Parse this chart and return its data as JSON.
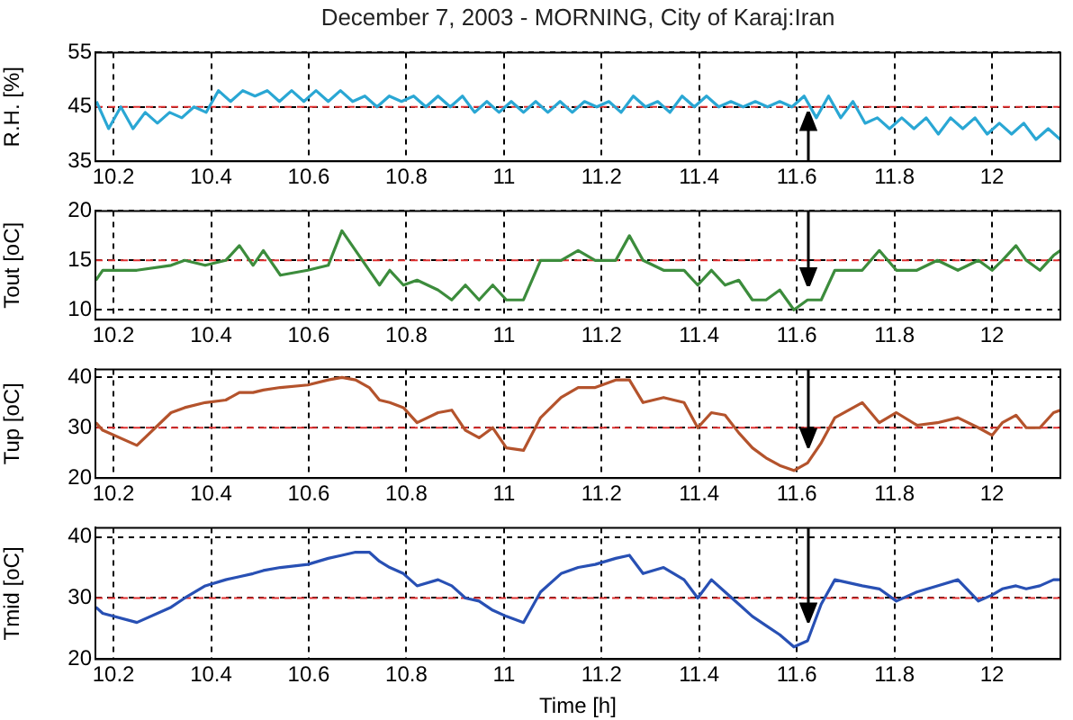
{
  "chart_data": [
    {
      "type": "line",
      "title": "December 7, 2003 - MORNING, City of Karaj:Iran",
      "ylabel": "R.H. [%]",
      "xlim": [
        10.163,
        12.14
      ],
      "xticks": [
        10.2,
        10.4,
        10.6,
        10.8,
        11,
        11.2,
        11.4,
        11.6,
        11.8,
        12
      ],
      "ylim": [
        35,
        55
      ],
      "yticks": [
        35,
        45,
        55
      ],
      "grid": true,
      "x": [
        10.165,
        10.19,
        10.215,
        10.24,
        10.265,
        10.29,
        10.315,
        10.34,
        10.365,
        10.39,
        10.415,
        10.44,
        10.465,
        10.49,
        10.515,
        10.54,
        10.565,
        10.59,
        10.615,
        10.64,
        10.665,
        10.69,
        10.715,
        10.74,
        10.765,
        10.79,
        10.815,
        10.84,
        10.865,
        10.89,
        10.915,
        10.94,
        10.965,
        10.99,
        11.015,
        11.04,
        11.065,
        11.09,
        11.115,
        11.14,
        11.165,
        11.19,
        11.215,
        11.24,
        11.265,
        11.29,
        11.315,
        11.34,
        11.365,
        11.39,
        11.415,
        11.44,
        11.465,
        11.49,
        11.515,
        11.54,
        11.565,
        11.59,
        11.615,
        11.64,
        11.665,
        11.69,
        11.715,
        11.74,
        11.765,
        11.79,
        11.815,
        11.84,
        11.865,
        11.89,
        11.915,
        11.94,
        11.965,
        11.99,
        12.015,
        12.04,
        12.065,
        12.09,
        12.115,
        12.14
      ],
      "series": [
        {
          "color": "#2aa7d4",
          "values": [
            46,
            41,
            45,
            41,
            44,
            42,
            44,
            43,
            45,
            44,
            48,
            46,
            48,
            47,
            48,
            46,
            48,
            46,
            48,
            46,
            48,
            46,
            47,
            45,
            47,
            46,
            47,
            45,
            47,
            45,
            47,
            44,
            46,
            44,
            46,
            44,
            46,
            44,
            46,
            44,
            46,
            45,
            46,
            44,
            47,
            45,
            46,
            44,
            47,
            45,
            47,
            45,
            46,
            45,
            46,
            45,
            46,
            45,
            47,
            43,
            47,
            43,
            46,
            42,
            43,
            41,
            43,
            41,
            43,
            40,
            43,
            41,
            43,
            40,
            42,
            40,
            42,
            39,
            41,
            39
          ]
        }
      ],
      "ref_lines": [
        {
          "axis": "y",
          "value": 45,
          "color": "#e03030",
          "line_style": "dashed"
        }
      ]
    },
    {
      "type": "line",
      "ylabel": "Tout [oC]",
      "xlim": [
        10.163,
        12.14
      ],
      "xticks": [
        10.2,
        10.4,
        10.6,
        10.8,
        11,
        11.2,
        11.4,
        11.6,
        11.8,
        12
      ],
      "ylim": [
        9,
        20
      ],
      "yticks": [
        10,
        15,
        20
      ],
      "grid": true,
      "x": [
        10.164,
        10.178,
        10.248,
        10.318,
        10.346,
        10.388,
        10.43,
        10.458,
        10.486,
        10.507,
        10.542,
        10.598,
        10.64,
        10.668,
        10.696,
        10.724,
        10.745,
        10.766,
        10.794,
        10.822,
        10.865,
        10.893,
        10.921,
        10.949,
        10.977,
        11.005,
        11.04,
        11.075,
        11.117,
        11.152,
        11.187,
        11.229,
        11.257,
        11.285,
        11.327,
        11.369,
        11.397,
        11.425,
        11.453,
        11.481,
        11.509,
        11.537,
        11.565,
        11.594,
        11.622,
        11.65,
        11.678,
        11.734,
        11.769,
        11.804,
        11.846,
        11.888,
        11.93,
        11.972,
        12.0,
        12.021,
        12.049,
        12.07,
        12.098,
        12.126,
        12.14
      ],
      "series": [
        {
          "color": "#3c8c3c",
          "values": [
            13,
            14,
            14,
            14.5,
            15,
            14.5,
            15,
            16.5,
            14.5,
            16,
            13.5,
            14,
            14.5,
            18,
            16,
            14,
            12.5,
            14,
            12.5,
            13,
            12,
            11,
            12.5,
            11,
            12.5,
            11,
            11,
            15,
            15,
            16,
            15,
            15,
            17.5,
            15,
            14,
            14,
            12.5,
            14,
            12.5,
            13,
            11,
            11,
            12,
            10,
            11,
            11,
            14,
            14,
            16,
            14,
            14,
            15,
            14,
            15,
            14,
            15,
            16.5,
            15,
            14,
            15.5,
            16
          ]
        }
      ],
      "ref_lines": [
        {
          "axis": "y",
          "value": 15,
          "color": "#e03030",
          "line_style": "dashed"
        }
      ]
    },
    {
      "type": "line",
      "ylabel": "Tup [oC]",
      "xlim": [
        10.163,
        12.14
      ],
      "xticks": [
        10.2,
        10.4,
        10.6,
        10.8,
        11,
        11.2,
        11.4,
        11.6,
        11.8,
        12
      ],
      "ylim": [
        20,
        41.6
      ],
      "yticks": [
        20,
        30,
        40
      ],
      "grid": true,
      "x": [
        10.164,
        10.178,
        10.248,
        10.318,
        10.346,
        10.388,
        10.43,
        10.458,
        10.486,
        10.507,
        10.542,
        10.598,
        10.64,
        10.668,
        10.696,
        10.724,
        10.745,
        10.766,
        10.794,
        10.822,
        10.865,
        10.893,
        10.921,
        10.949,
        10.977,
        11.005,
        11.04,
        11.075,
        11.117,
        11.152,
        11.187,
        11.229,
        11.257,
        11.285,
        11.327,
        11.369,
        11.397,
        11.425,
        11.453,
        11.481,
        11.509,
        11.537,
        11.565,
        11.594,
        11.622,
        11.65,
        11.678,
        11.734,
        11.769,
        11.804,
        11.846,
        11.888,
        11.93,
        11.972,
        12.0,
        12.021,
        12.049,
        12.07,
        12.098,
        12.126,
        12.14
      ],
      "series": [
        {
          "color": "#b4532c",
          "values": [
            31,
            29.5,
            26.5,
            33,
            34,
            35,
            35.5,
            37,
            37,
            37.5,
            38,
            38.5,
            39.5,
            40,
            39.5,
            38,
            35.5,
            35,
            34,
            31,
            33,
            33.5,
            29.5,
            28,
            30,
            26,
            25.5,
            32,
            36,
            38,
            38,
            39.5,
            39.5,
            35,
            36,
            35,
            30,
            33,
            32.5,
            29,
            26,
            24,
            22.5,
            21.5,
            23,
            27,
            32,
            35,
            31,
            33,
            30.5,
            31,
            32,
            30,
            28.5,
            31,
            32.5,
            30,
            30,
            33,
            33.5
          ]
        }
      ],
      "ref_lines": [
        {
          "axis": "y",
          "value": 30,
          "color": "#e03030",
          "line_style": "dashed"
        }
      ]
    },
    {
      "type": "line",
      "ylabel": "Tmid [oC]",
      "xlabel": "Time [h]",
      "xlim": [
        10.163,
        12.14
      ],
      "xticks": [
        10.2,
        10.4,
        10.6,
        10.8,
        11,
        11.2,
        11.4,
        11.6,
        11.8,
        12
      ],
      "ylim": [
        20,
        41.5
      ],
      "yticks": [
        20,
        30,
        40
      ],
      "grid": true,
      "x": [
        10.164,
        10.178,
        10.248,
        10.318,
        10.346,
        10.388,
        10.43,
        10.458,
        10.486,
        10.507,
        10.542,
        10.598,
        10.64,
        10.668,
        10.696,
        10.724,
        10.745,
        10.766,
        10.794,
        10.822,
        10.865,
        10.893,
        10.921,
        10.949,
        10.977,
        11.005,
        11.04,
        11.075,
        11.117,
        11.152,
        11.187,
        11.229,
        11.257,
        11.285,
        11.327,
        11.369,
        11.397,
        11.425,
        11.453,
        11.481,
        11.509,
        11.537,
        11.565,
        11.594,
        11.622,
        11.65,
        11.678,
        11.734,
        11.769,
        11.804,
        11.846,
        11.888,
        11.93,
        11.972,
        12.0,
        12.021,
        12.049,
        12.07,
        12.098,
        12.126,
        12.14
      ],
      "series": [
        {
          "color": "#2850b4",
          "values": [
            28.5,
            27.5,
            26,
            28.5,
            30,
            32,
            33,
            33.5,
            34,
            34.5,
            35,
            35.5,
            36.5,
            37,
            37.5,
            37.5,
            36,
            35,
            34,
            32,
            33,
            32,
            30,
            29.5,
            28,
            27,
            26,
            31,
            34,
            35,
            35.5,
            36.5,
            37,
            34,
            35,
            33,
            30,
            33,
            31,
            29,
            27,
            25.5,
            24,
            22,
            23,
            29,
            33,
            32,
            31.5,
            29.5,
            31,
            32,
            33,
            29.5,
            30.5,
            31.5,
            32,
            31.5,
            32,
            33,
            33
          ]
        }
      ],
      "ref_lines": [
        {
          "axis": "y",
          "value": 30,
          "color": "#e03030",
          "line_style": "dashed"
        }
      ]
    }
  ]
}
